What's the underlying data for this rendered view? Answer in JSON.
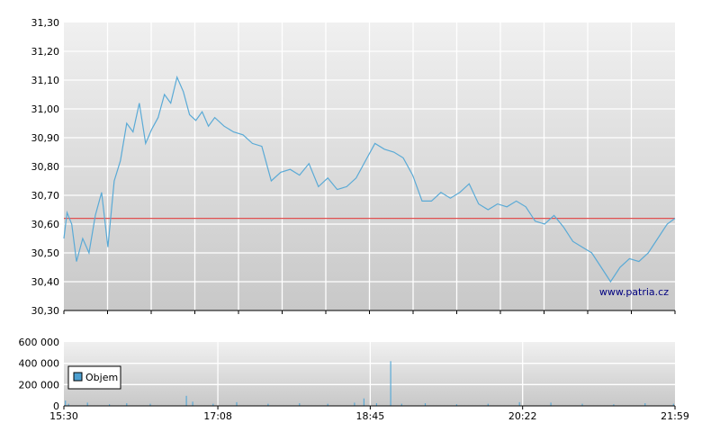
{
  "chart_data": [
    {
      "type": "line",
      "title": "",
      "ylim": [
        30.3,
        31.3
      ],
      "y_ticks": [
        "31,30",
        "31,20",
        "31,10",
        "31,00",
        "30,90",
        "30,80",
        "30,70",
        "30,60",
        "30,50",
        "30,40",
        "30,30"
      ],
      "reference_line": {
        "value": 30.62,
        "color": "#e05050"
      },
      "series": [
        {
          "color": "#5aaad6",
          "points": [
            [
              "15:30",
              30.55
            ],
            [
              "15:32",
              30.64
            ],
            [
              "15:35",
              30.6
            ],
            [
              "15:38",
              30.47
            ],
            [
              "15:42",
              30.55
            ],
            [
              "15:46",
              30.5
            ],
            [
              "15:50",
              30.63
            ],
            [
              "15:54",
              30.71
            ],
            [
              "15:58",
              30.52
            ],
            [
              "16:02",
              30.75
            ],
            [
              "16:06",
              30.82
            ],
            [
              "16:10",
              30.95
            ],
            [
              "16:14",
              30.92
            ],
            [
              "16:18",
              31.02
            ],
            [
              "16:22",
              30.88
            ],
            [
              "16:26",
              30.93
            ],
            [
              "16:30",
              30.97
            ],
            [
              "16:34",
              31.05
            ],
            [
              "16:38",
              31.02
            ],
            [
              "16:42",
              31.11
            ],
            [
              "16:46",
              31.06
            ],
            [
              "16:50",
              30.98
            ],
            [
              "16:54",
              30.96
            ],
            [
              "16:58",
              30.99
            ],
            [
              "17:02",
              30.94
            ],
            [
              "17:06",
              30.97
            ],
            [
              "17:12",
              30.94
            ],
            [
              "17:18",
              30.92
            ],
            [
              "17:24",
              30.91
            ],
            [
              "17:30",
              30.88
            ],
            [
              "17:36",
              30.87
            ],
            [
              "17:42",
              30.75
            ],
            [
              "17:48",
              30.78
            ],
            [
              "17:54",
              30.79
            ],
            [
              "18:00",
              30.77
            ],
            [
              "18:06",
              30.81
            ],
            [
              "18:12",
              30.73
            ],
            [
              "18:18",
              30.76
            ],
            [
              "18:24",
              30.72
            ],
            [
              "18:30",
              30.73
            ],
            [
              "18:36",
              30.76
            ],
            [
              "18:42",
              30.82
            ],
            [
              "18:48",
              30.88
            ],
            [
              "18:54",
              30.86
            ],
            [
              "19:00",
              30.85
            ],
            [
              "19:06",
              30.83
            ],
            [
              "19:12",
              30.77
            ],
            [
              "19:18",
              30.68
            ],
            [
              "19:24",
              30.68
            ],
            [
              "19:30",
              30.71
            ],
            [
              "19:36",
              30.69
            ],
            [
              "19:42",
              30.71
            ],
            [
              "19:48",
              30.74
            ],
            [
              "19:54",
              30.67
            ],
            [
              "20:00",
              30.65
            ],
            [
              "20:06",
              30.67
            ],
            [
              "20:12",
              30.66
            ],
            [
              "20:18",
              30.68
            ],
            [
              "20:24",
              30.66
            ],
            [
              "20:30",
              30.61
            ],
            [
              "20:36",
              30.6
            ],
            [
              "20:42",
              30.63
            ],
            [
              "20:48",
              30.59
            ],
            [
              "20:54",
              30.54
            ],
            [
              "21:00",
              30.52
            ],
            [
              "21:06",
              30.5
            ],
            [
              "21:12",
              30.45
            ],
            [
              "21:18",
              30.4
            ],
            [
              "21:24",
              30.45
            ],
            [
              "21:30",
              30.48
            ],
            [
              "21:36",
              30.47
            ],
            [
              "21:42",
              30.5
            ],
            [
              "21:48",
              30.55
            ],
            [
              "21:54",
              30.6
            ],
            [
              "21:59",
              30.62
            ]
          ]
        }
      ],
      "watermark": "www.patria.cz"
    },
    {
      "type": "bar",
      "title": "",
      "ylim": [
        0,
        600000
      ],
      "y_ticks": [
        "600 000",
        "400 000",
        "200 000",
        "0"
      ],
      "x_ticks": [
        "15:30",
        "17:08",
        "18:45",
        "20:22",
        "21:59"
      ],
      "legend": {
        "label": "Objem",
        "placement": "left",
        "color": "#4d9fd0"
      },
      "series": [
        {
          "name": "Objem",
          "color": "#5aaad6",
          "points": [
            [
              "15:31",
              50000
            ],
            [
              "15:33",
              20000
            ],
            [
              "15:45",
              30000
            ],
            [
              "15:59",
              15000
            ],
            [
              "16:10",
              25000
            ],
            [
              "16:25",
              20000
            ],
            [
              "16:48",
              95000
            ],
            [
              "16:52",
              40000
            ],
            [
              "17:05",
              20000
            ],
            [
              "17:20",
              35000
            ],
            [
              "17:40",
              20000
            ],
            [
              "18:00",
              25000
            ],
            [
              "18:18",
              20000
            ],
            [
              "18:35",
              30000
            ],
            [
              "18:41",
              70000
            ],
            [
              "18:49",
              25000
            ],
            [
              "18:58",
              420000
            ],
            [
              "19:05",
              20000
            ],
            [
              "19:20",
              25000
            ],
            [
              "19:40",
              15000
            ],
            [
              "20:00",
              20000
            ],
            [
              "20:20",
              35000
            ],
            [
              "20:40",
              30000
            ],
            [
              "21:00",
              20000
            ],
            [
              "21:20",
              15000
            ],
            [
              "21:40",
              25000
            ],
            [
              "21:58",
              20000
            ]
          ]
        }
      ]
    }
  ]
}
